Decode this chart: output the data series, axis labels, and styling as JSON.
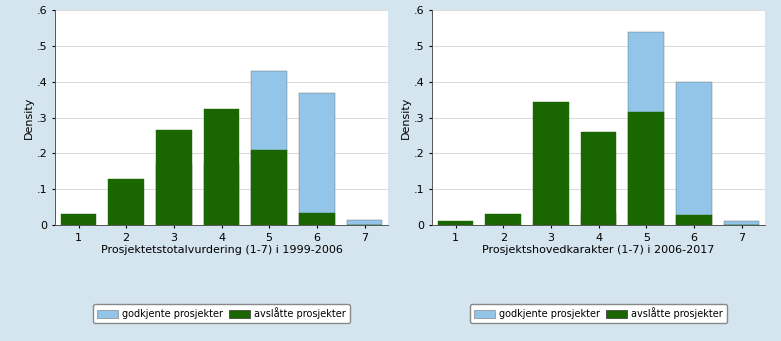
{
  "left": {
    "xlabel": "Prosjektetstotalvurdering (1-7) i 1999-2006",
    "ylabel": "Density",
    "xlim": [
      0.5,
      7.5
    ],
    "ylim": [
      0,
      0.6
    ],
    "yticks": [
      0,
      0.1,
      0.2,
      0.3,
      0.4,
      0.5,
      0.6
    ],
    "ytick_labels": [
      "0",
      ".1",
      ".2",
      ".3",
      ".4",
      ".5",
      ".6"
    ],
    "xticks": [
      1,
      2,
      3,
      4,
      5,
      6,
      7
    ],
    "blue_values": [
      0.0,
      0.0,
      0.17,
      0.17,
      0.43,
      0.37,
      0.015
    ],
    "green_values": [
      0.03,
      0.13,
      0.265,
      0.325,
      0.21,
      0.035,
      0.0
    ]
  },
  "right": {
    "xlabel": "Prosjektshovedkarakter (1-7) i 2006-2017",
    "ylabel": "Density",
    "xlim": [
      0.5,
      7.5
    ],
    "ylim": [
      0,
      0.6
    ],
    "yticks": [
      0,
      0.1,
      0.2,
      0.3,
      0.4,
      0.5,
      0.6
    ],
    "ytick_labels": [
      "0",
      ".1",
      ".2",
      ".3",
      ".4",
      ".5",
      ".6"
    ],
    "xticks": [
      1,
      2,
      3,
      4,
      5,
      6,
      7
    ],
    "blue_values": [
      0.0,
      0.0,
      0.005,
      0.035,
      0.54,
      0.4,
      0.012
    ],
    "green_values": [
      0.012,
      0.032,
      0.345,
      0.26,
      0.315,
      0.028,
      0.0
    ]
  },
  "legend_labels": [
    "godkjente prosjekter",
    "avslåtte prosjekter"
  ],
  "blue_color": "#92C5E8",
  "green_color": "#1a6600",
  "plot_bg_color": "#ffffff",
  "fig_bg_color": "#d5e5f0",
  "bar_width": 0.75,
  "legend_edge_color": "#888888"
}
